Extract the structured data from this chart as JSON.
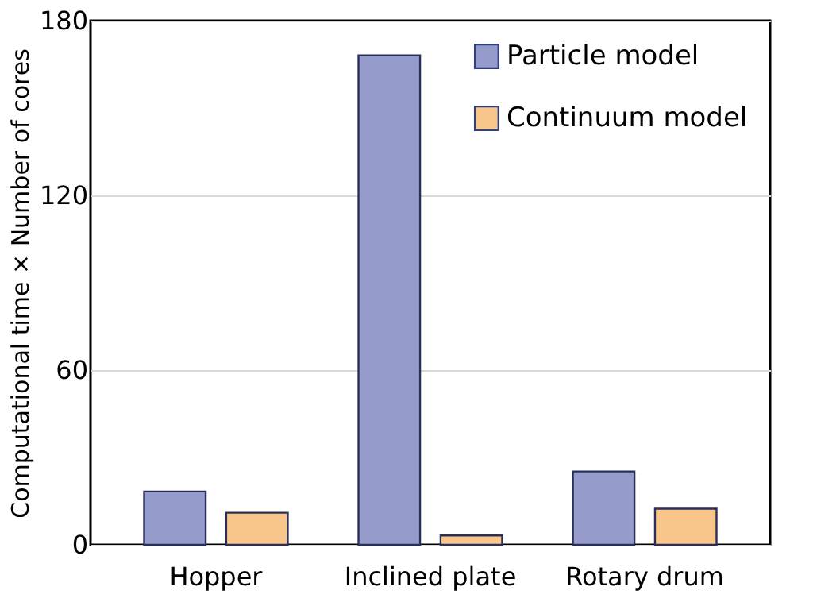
{
  "chart_data": {
    "type": "bar",
    "ylabel": "Computational  time × Number of cores",
    "categories": [
      "Hopper",
      "Inclined plate",
      "Rotary drum"
    ],
    "series": [
      {
        "name": "Particle model",
        "color": "#959ccc",
        "values": [
          18.3,
          168.1,
          25.2
        ]
      },
      {
        "name": "Continuum model",
        "color": "#f8c68b",
        "values": [
          11.0,
          3.2,
          12.4
        ]
      }
    ],
    "ylim": [
      0,
      180
    ],
    "yticks": [
      0,
      60,
      120,
      180
    ],
    "grid": "y",
    "legend": "top right"
  }
}
